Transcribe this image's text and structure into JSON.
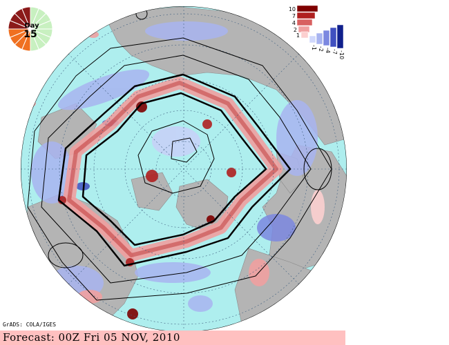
{
  "day_dial": {
    "label_top": "Day",
    "label_value": "15",
    "elapsed_fraction": 0.5,
    "colors": {
      "elapsed_dark": "#8b1a1a",
      "elapsed_mid": "#f07020",
      "remaining": "#c8f0c0"
    }
  },
  "legend": {
    "labels_positive": [
      "10",
      "7",
      "4",
      "2",
      "1"
    ],
    "labels_negative": [
      "-1",
      "-2",
      "-4",
      "-7",
      "-10"
    ],
    "colors_positive": [
      "#7f0000",
      "#b02020",
      "#d86060",
      "#f0a0a0",
      "#fcd0d0"
    ],
    "colors_negative": [
      "#d0d8fc",
      "#a8b4f0",
      "#7c88e0",
      "#4050c0",
      "#10208c"
    ]
  },
  "map": {
    "ocean_color": "#aeeeee",
    "land_color": "#b4b4b4",
    "projection": "north-polar-stereographic"
  },
  "credit": "GrADS: COLA/IGES",
  "footer": {
    "text": "Forecast: 00Z Fri 05 NOV, 2010",
    "background": "#ffc0c0"
  }
}
